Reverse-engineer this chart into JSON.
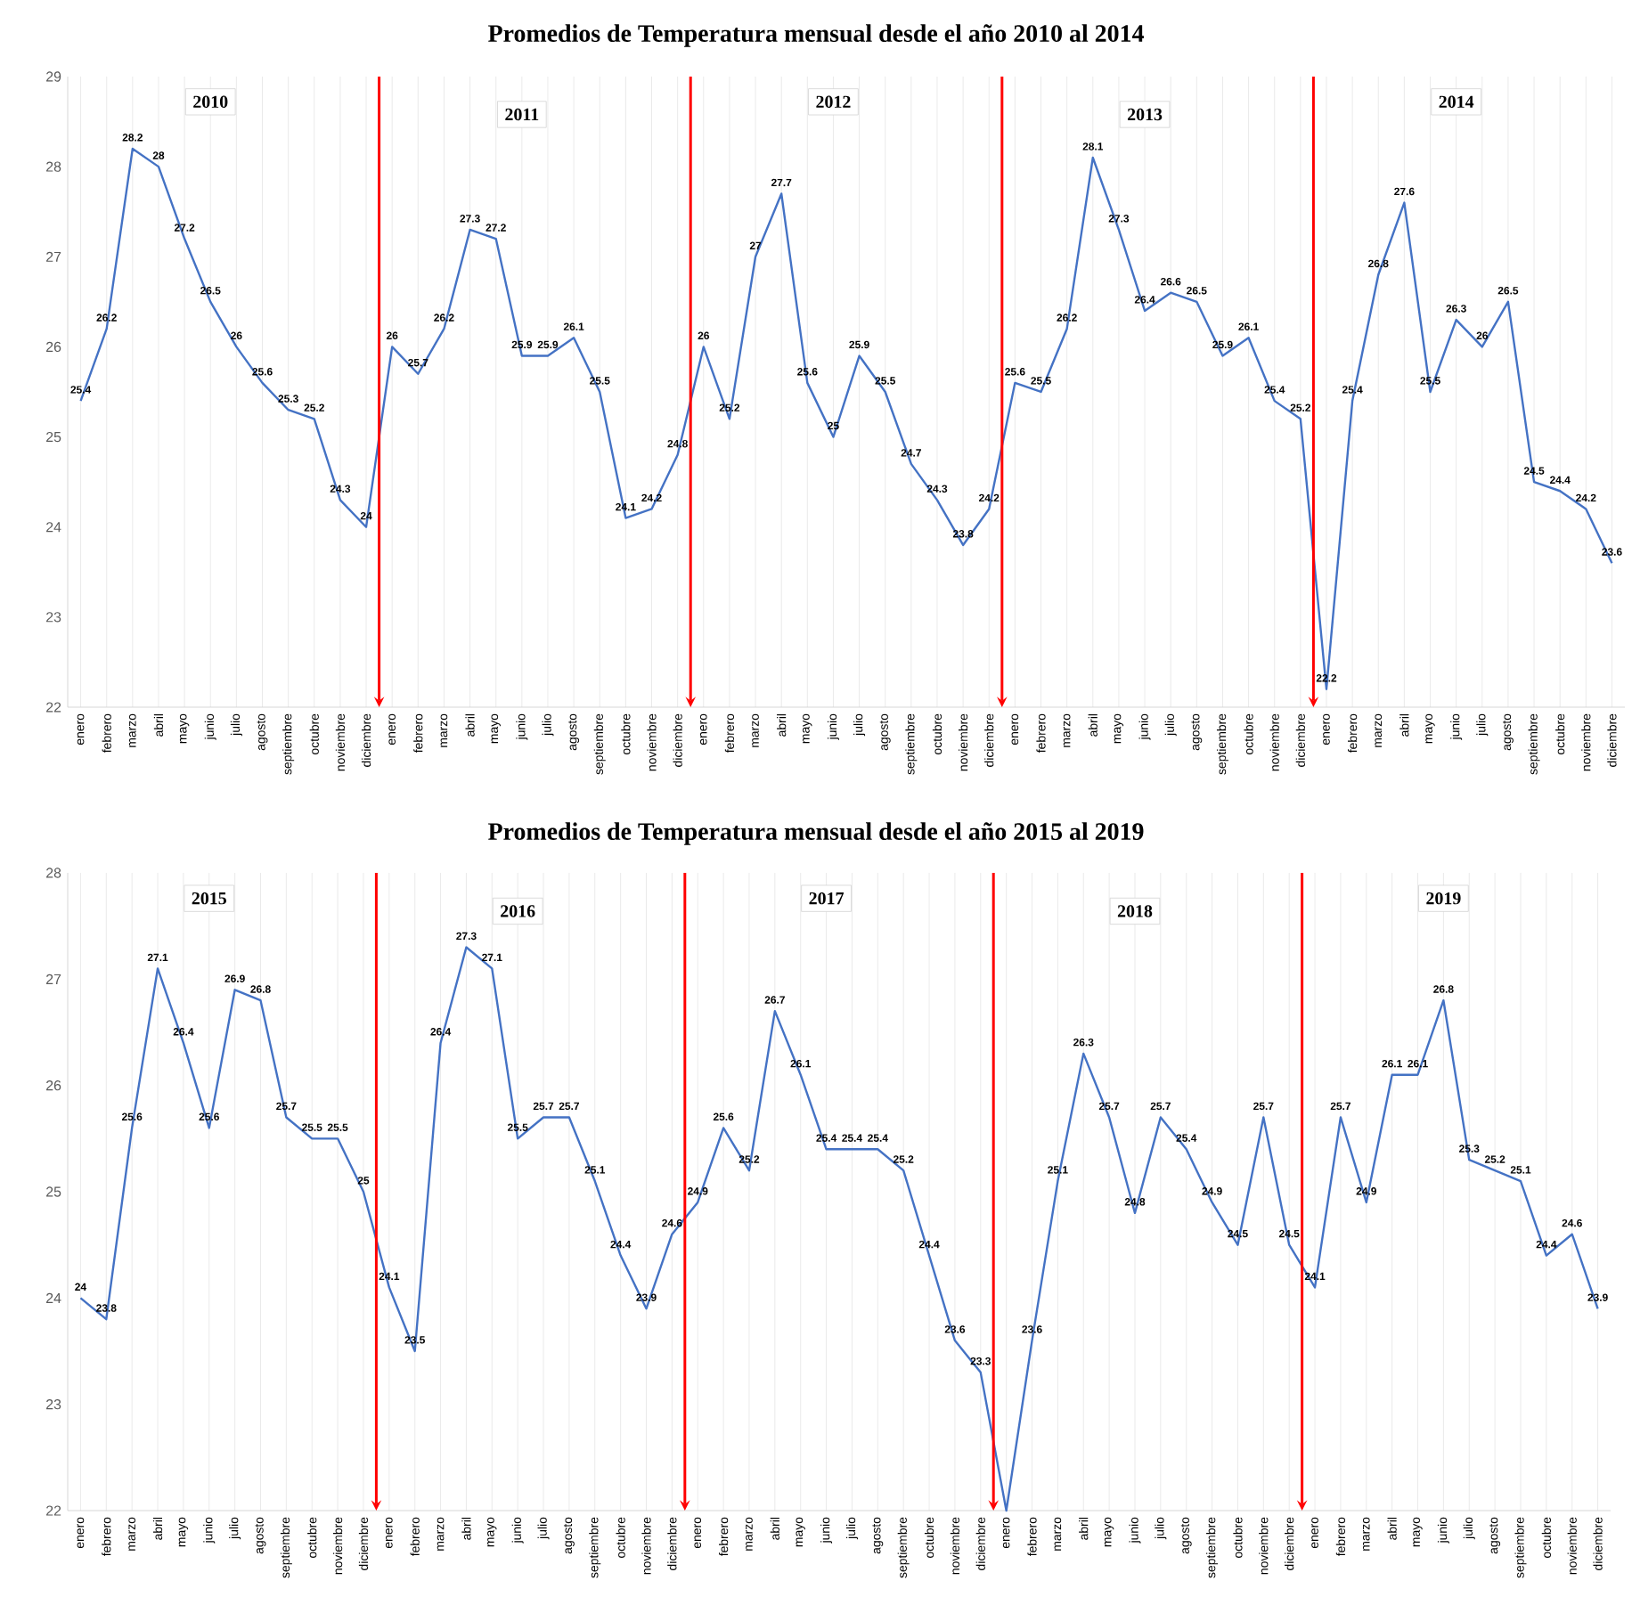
{
  "chart_data": [
    {
      "type": "line",
      "title": "Promedios de Temperatura mensual desde el año 2010 al 2014",
      "categories": [
        "enero",
        "febrero",
        "marzo",
        "abril",
        "mayo",
        "junio",
        "julio",
        "agosto",
        "septiembre",
        "octubre",
        "noviembre",
        "diciembre",
        "enero",
        "febrero",
        "marzo",
        "abril",
        "mayo",
        "junio",
        "julio",
        "agosto",
        "septiembre",
        "octubre",
        "noviembre",
        "diciembre",
        "enero",
        "febrero",
        "marzo",
        "abril",
        "mayo",
        "junio",
        "julio",
        "agosto",
        "septiembre",
        "octubre",
        "noviembre",
        "diciembre",
        "enero",
        "febrero",
        "marzo",
        "abril",
        "mayo",
        "junio",
        "julio",
        "agosto",
        "septiembre",
        "octubre",
        "noviembre",
        "diciembre",
        "enero",
        "febrero",
        "marzo",
        "abril",
        "mayo",
        "junio",
        "julio",
        "agosto",
        "septiembre",
        "octubre",
        "noviembre",
        "diciembre"
      ],
      "series": [
        {
          "color": "#4472c4",
          "values": [
            25.4,
            26.2,
            28.2,
            28,
            27.2,
            26.5,
            26,
            25.6,
            25.3,
            25.2,
            24.3,
            24,
            26,
            25.7,
            26.2,
            27.3,
            27.2,
            25.9,
            25.9,
            26.1,
            25.5,
            24.1,
            24.2,
            24.8,
            26,
            25.2,
            27,
            27.7,
            25.6,
            25,
            25.9,
            25.5,
            24.7,
            24.3,
            23.8,
            24.2,
            25.6,
            25.5,
            26.2,
            28.1,
            27.3,
            26.4,
            26.6,
            26.5,
            25.9,
            26.1,
            25.4,
            25.2,
            22.2,
            25.4,
            26.8,
            27.6,
            25.5,
            26.3,
            26,
            26.5,
            24.5,
            24.4,
            24.2,
            23.6
          ]
        }
      ],
      "ylim": [
        22,
        29
      ],
      "yticks": [
        22,
        23,
        24,
        25,
        26,
        27,
        28,
        29
      ],
      "grid": "x",
      "data_labels": true,
      "annotations": [
        "2010",
        "2011",
        "2012",
        "2013",
        "2014"
      ]
    },
    {
      "type": "line",
      "title": "Promedios de Temperatura mensual desde el año 2015 al 2019",
      "categories": [
        "enero",
        "febrero",
        "marzo",
        "abril",
        "mayo",
        "junio",
        "julio",
        "agosto",
        "septiembre",
        "octubre",
        "noviembre",
        "diciembre",
        "enero",
        "febrero",
        "marzo",
        "abril",
        "mayo",
        "junio",
        "julio",
        "agosto",
        "septiembre",
        "octubre",
        "noviembre",
        "diciembre",
        "enero",
        "febrero",
        "marzo",
        "abril",
        "mayo",
        "junio",
        "julio",
        "agosto",
        "septiembre",
        "octubre",
        "noviembre",
        "diciembre",
        "enero",
        "febrero",
        "marzo",
        "abril",
        "mayo",
        "junio",
        "julio",
        "agosto",
        "septiembre",
        "octubre",
        "noviembre",
        "diciembre",
        "enero",
        "febrero",
        "marzo",
        "abril",
        "mayo",
        "junio",
        "julio",
        "agosto",
        "septiembre",
        "octubre",
        "noviembre",
        "diciembre"
      ],
      "series": [
        {
          "color": "#4472c4",
          "values": [
            24,
            23.8,
            25.6,
            27.1,
            26.4,
            25.6,
            26.9,
            26.8,
            25.7,
            25.5,
            25.5,
            25,
            24.1,
            23.5,
            26.4,
            27.3,
            27.1,
            25.5,
            25.7,
            25.7,
            25.1,
            24.4,
            23.9,
            24.6,
            24.9,
            25.6,
            25.2,
            26.7,
            26.1,
            25.4,
            25.4,
            25.4,
            25.2,
            24.4,
            23.6,
            23.3,
            22,
            23.6,
            25.1,
            26.3,
            25.7,
            24.8,
            25.7,
            25.4,
            24.9,
            24.5,
            25.7,
            24.5,
            24.1,
            25.7,
            24.9,
            26.1,
            26.1,
            26.8,
            25.3,
            25.2,
            25.1,
            24.4,
            24.6,
            23.9
          ],
          "value_labels": [
            "24",
            "23.8",
            "25.6",
            "27.1",
            "26.4",
            "25.6",
            "26.9",
            "26.8",
            "25.7",
            "25.5",
            "25.5",
            "25",
            "24.1",
            "23.5",
            "26.4",
            "27.3",
            "27.1",
            "25.5",
            "25.7",
            "25.7",
            "25.1",
            "24.4",
            "23.9",
            "24.6",
            "24.9",
            "25.6",
            "25.2",
            "26.7",
            "26.1",
            "25.4",
            "25.4",
            "25.4",
            "25.2",
            "24.4",
            "23.6",
            "23.3",
            null,
            "23.6",
            "25.1",
            "26.3",
            "25.7",
            "24.8",
            "25.7",
            "25.4",
            "24.9",
            "24.5",
            "25.7",
            "24.5",
            "24.1",
            "25.7",
            "24.9",
            "26.1",
            "26.1",
            "26.8",
            "25.3",
            "25.2",
            "25.1",
            "24.4",
            "24.6",
            "23.9"
          ]
        }
      ],
      "ylim": [
        22,
        28
      ],
      "yticks": [
        22,
        23,
        24,
        25,
        26,
        27,
        28
      ],
      "grid": "x",
      "annotations": [
        "2015",
        "2016",
        "2017",
        "2018",
        "2019"
      ]
    }
  ]
}
